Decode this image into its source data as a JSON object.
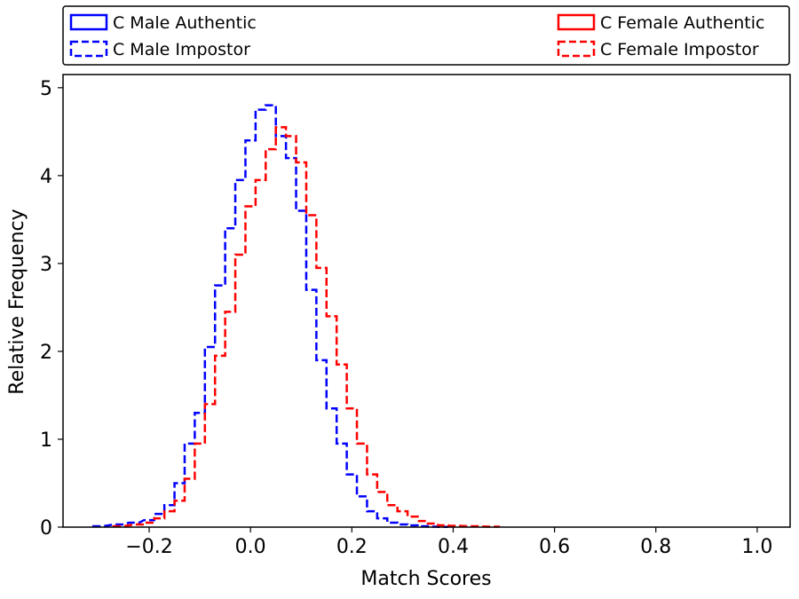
{
  "chart_data": {
    "type": "histogram",
    "xlabel": "Match Scores",
    "ylabel": "Relative Frequency",
    "xlim": [
      -0.37,
      1.065
    ],
    "ylim": [
      0,
      5.15
    ],
    "x_ticks": [
      -0.2,
      0.0,
      0.2,
      0.4,
      0.6,
      0.8,
      1.0
    ],
    "x_tick_labels": [
      "−0.2",
      "0.0",
      "0.2",
      "0.4",
      "0.6",
      "0.8",
      "1.0"
    ],
    "y_ticks": [
      0,
      1,
      2,
      3,
      4,
      5
    ],
    "y_tick_labels": [
      "0",
      "1",
      "2",
      "3",
      "4",
      "5"
    ],
    "legend_position": "top, above plot",
    "colors": {
      "male": "#0000ff",
      "female": "#ff0000",
      "axes": "#000000"
    },
    "legend": [
      {
        "label": "C Male Authentic",
        "color": "#0000ff",
        "style": "solid",
        "column": "left"
      },
      {
        "label": "C Male Impostor",
        "color": "#0000ff",
        "style": "dashed",
        "column": "left"
      },
      {
        "label": "C Female Authentic",
        "color": "#ff0000",
        "style": "solid",
        "column": "right"
      },
      {
        "label": "C Female Impostor",
        "color": "#ff0000",
        "style": "dashed",
        "column": "right"
      }
    ],
    "series": [
      {
        "name": "C Male Impostor",
        "color": "#0000ff",
        "style": "dashed",
        "x": [
          -0.3,
          -0.26,
          -0.23,
          -0.2,
          -0.18,
          -0.16,
          -0.14,
          -0.12,
          -0.1,
          -0.08,
          -0.06,
          -0.04,
          -0.02,
          0.0,
          0.02,
          0.04,
          0.06,
          0.08,
          0.1,
          0.12,
          0.14,
          0.16,
          0.18,
          0.2,
          0.22,
          0.24,
          0.26,
          0.28,
          0.3,
          0.32,
          0.34,
          0.36,
          0.38
        ],
        "y": [
          0.01,
          0.03,
          0.05,
          0.08,
          0.15,
          0.25,
          0.5,
          0.95,
          1.3,
          2.05,
          2.75,
          3.4,
          3.95,
          4.4,
          4.75,
          4.8,
          4.45,
          4.2,
          3.6,
          2.7,
          1.9,
          1.35,
          0.95,
          0.6,
          0.35,
          0.18,
          0.1,
          0.05,
          0.03,
          0.02,
          0.01,
          0.005,
          0.002
        ]
      },
      {
        "name": "C Female Impostor",
        "color": "#ff0000",
        "style": "dashed",
        "x": [
          -0.26,
          -0.22,
          -0.2,
          -0.18,
          -0.16,
          -0.14,
          -0.12,
          -0.1,
          -0.08,
          -0.06,
          -0.04,
          -0.02,
          0.0,
          0.02,
          0.04,
          0.06,
          0.08,
          0.1,
          0.12,
          0.14,
          0.16,
          0.18,
          0.2,
          0.22,
          0.24,
          0.26,
          0.28,
          0.3,
          0.32,
          0.34,
          0.36,
          0.38,
          0.4,
          0.44,
          0.48
        ],
        "y": [
          0.01,
          0.03,
          0.05,
          0.1,
          0.18,
          0.3,
          0.55,
          0.95,
          1.4,
          1.95,
          2.45,
          3.1,
          3.65,
          3.95,
          4.3,
          4.55,
          4.45,
          4.15,
          3.55,
          2.95,
          2.4,
          1.85,
          1.35,
          0.95,
          0.6,
          0.4,
          0.25,
          0.18,
          0.12,
          0.07,
          0.04,
          0.02,
          0.015,
          0.01,
          0.005
        ]
      }
    ]
  }
}
